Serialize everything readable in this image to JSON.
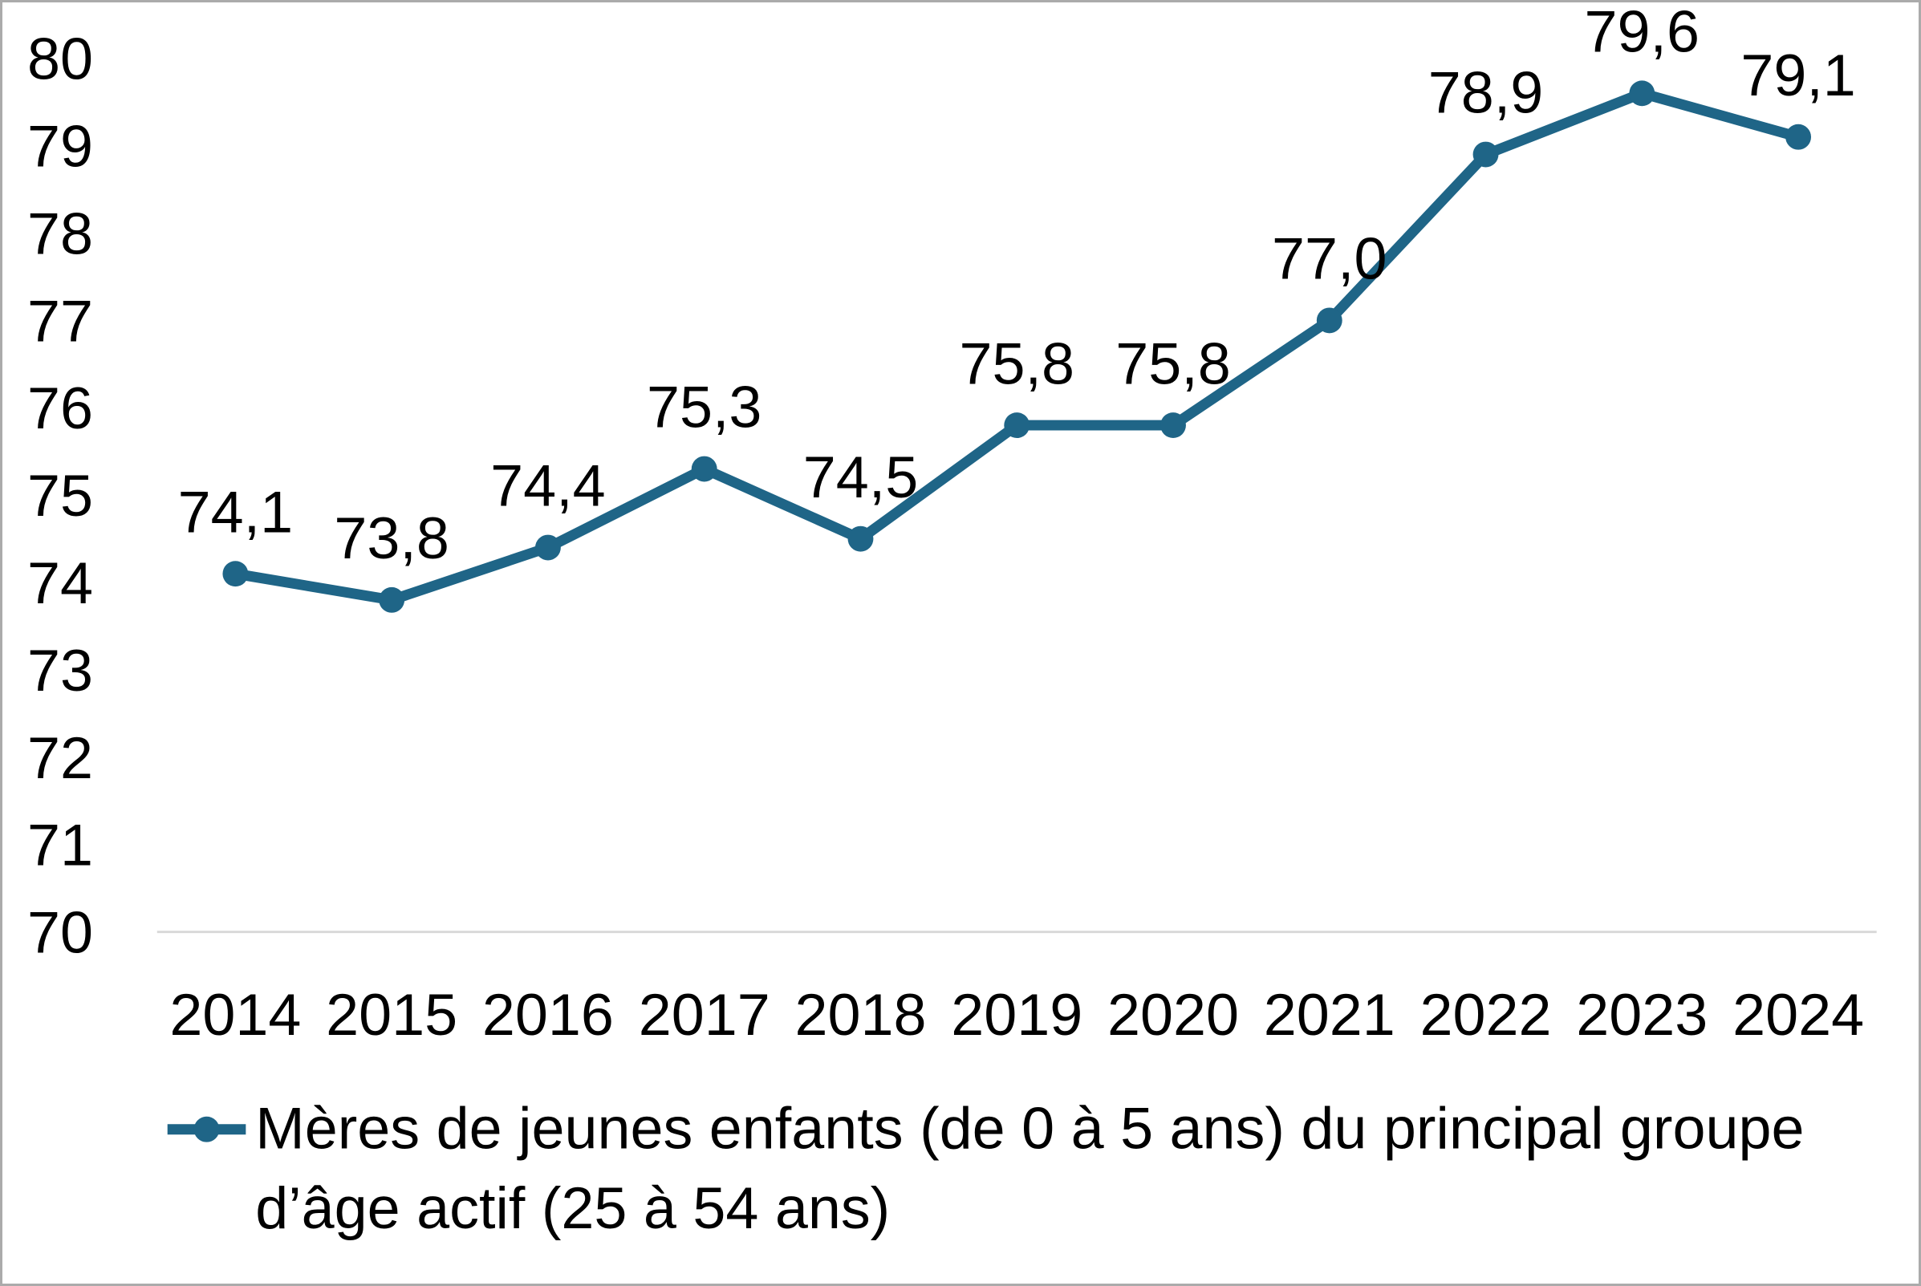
{
  "chart_data": {
    "type": "line",
    "title": "",
    "categories": [
      "2014",
      "2015",
      "2016",
      "2017",
      "2018",
      "2019",
      "2020",
      "2021",
      "2022",
      "2023",
      "2024"
    ],
    "series": [
      {
        "name": "Mères de jeunes enfants (de 0 à 5 ans) du principal groupe d’âge actif (25 à 54 ans)",
        "values": [
          74.1,
          73.8,
          74.4,
          75.3,
          74.5,
          75.8,
          75.8,
          77.0,
          78.9,
          79.6,
          79.1
        ],
        "data_labels": [
          "74,1",
          "73,8",
          "74,4",
          "75,3",
          "74,5",
          "75,8",
          "75,8",
          "77,0",
          "78,9",
          "79,6",
          "79,1"
        ]
      }
    ],
    "xlabel": "",
    "ylabel": "",
    "ylim": [
      70,
      80
    ],
    "ytick_labels": [
      "70",
      "71",
      "72",
      "73",
      "74",
      "75",
      "76",
      "77",
      "78",
      "79",
      "80"
    ],
    "grid": "baseline-only",
    "decimal_separator": ",",
    "legend_position": "bottom-left",
    "legend_lines": [
      "Mères de jeunes enfants (de 0 à 5 ans) du principal groupe",
      "d’âge actif (25 à 54 ans)"
    ],
    "colors": {
      "line": "#1F6587",
      "marker": "#1F6587",
      "axis_text": "#000000",
      "baseline": "#D9D9D9",
      "border": "#ABABAB"
    }
  }
}
